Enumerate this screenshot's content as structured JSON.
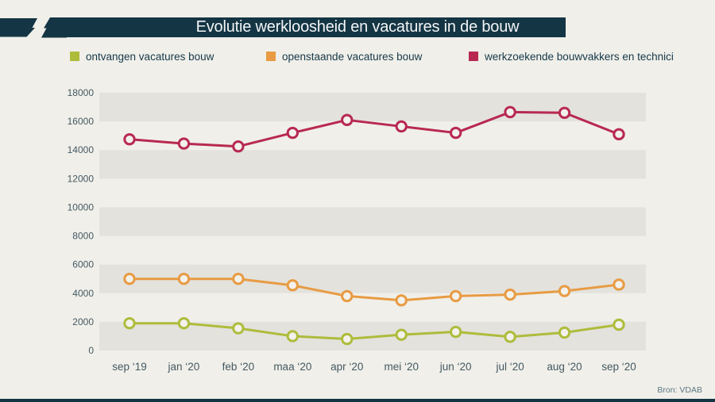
{
  "header": {
    "title": "Evolutie werkloosheid en vacatures in de bouw"
  },
  "source": {
    "label": "Bron: VDAB"
  },
  "colors": {
    "background": "#f0efe9",
    "stripe": "#e3e2dd",
    "navy": "#143544",
    "axis_text": "#445963",
    "legend_text": "#16394a",
    "marker_fill": "#f2f1ec",
    "source_text": "#5d7884",
    "title_text": "#f3f5f5"
  },
  "chart_data": {
    "type": "line",
    "title": "Evolutie werkloosheid en vacatures in de bouw",
    "categories": [
      "sep ‘19",
      "jan ‘20",
      "feb ‘20",
      "maa ‘20",
      "apr ‘20",
      "mei ‘20",
      "jun ‘20",
      "jul ‘20",
      "aug ‘20",
      "sep ‘20"
    ],
    "series": [
      {
        "name": "ontvangen vacatures bouw",
        "color": "#aebc3b",
        "values": [
          1900,
          1900,
          1550,
          1000,
          800,
          1100,
          1300,
          950,
          1250,
          1800
        ]
      },
      {
        "name": "openstaande vacatures bouw",
        "color": "#e89b43",
        "values": [
          5000,
          5000,
          5000,
          4550,
          3800,
          3500,
          3800,
          3900,
          4150,
          4600
        ]
      },
      {
        "name": "werkzoekende bouwvakkers en technici",
        "color": "#b82950",
        "values": [
          14750,
          14450,
          14250,
          15200,
          16100,
          15650,
          15200,
          16650,
          16600,
          15100
        ]
      }
    ],
    "xlabel": "",
    "ylabel": "",
    "ylim": [
      0,
      18000
    ],
    "ytick_step": 2000,
    "grid": "striped-horizontal-bands",
    "legend_position": "top",
    "marker": "open-circle"
  }
}
